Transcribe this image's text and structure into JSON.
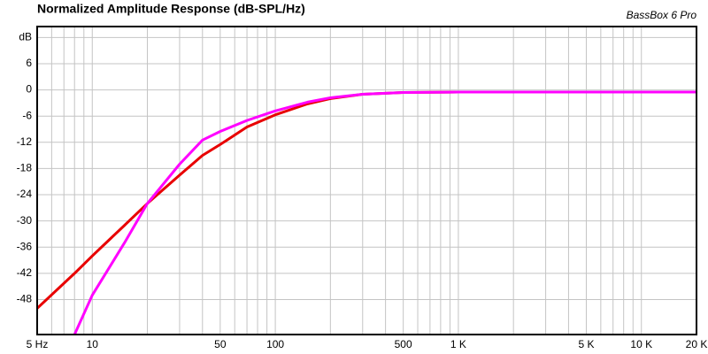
{
  "chart_data": {
    "type": "line",
    "title": "Normalized Amplitude Response (dB-SPL/Hz)",
    "annotation": "BassBox 6 Pro",
    "x": [
      5,
      8,
      10,
      15,
      20,
      30,
      40,
      50,
      70,
      100,
      150,
      200,
      300,
      500,
      1000,
      20000
    ],
    "series": [
      {
        "color": "#e80000",
        "values": [
          -50,
          -42,
          -38,
          -31,
          -26,
          -19.5,
          -15,
          -12.5,
          -8.5,
          -5.7,
          -3.2,
          -2,
          -1,
          -0.6,
          -0.5,
          -0.5
        ]
      },
      {
        "color": "#ff00ff",
        "values": [
          null,
          -56,
          -47,
          -35,
          -26,
          -17,
          -11.5,
          -9.5,
          -7,
          -4.8,
          -2.8,
          -1.8,
          -1,
          -0.6,
          -0.5,
          -0.5
        ]
      }
    ],
    "xscale": "log",
    "xlim": [
      5,
      20000
    ],
    "xticks": [
      {
        "value": 5,
        "label": "5 Hz"
      },
      10,
      50,
      100,
      500,
      {
        "value": 1000,
        "label": "1 K"
      },
      {
        "value": 5000,
        "label": "5 K"
      },
      {
        "value": 10000,
        "label": "10 K"
      },
      {
        "value": 20000,
        "label": "20 K"
      }
    ],
    "x_minor_grid": [
      6,
      7,
      8,
      9,
      20,
      30,
      40,
      60,
      70,
      80,
      90,
      200,
      300,
      400,
      600,
      700,
      800,
      900,
      2000,
      3000,
      4000,
      6000,
      7000,
      8000,
      9000
    ],
    "ylim": [
      -56,
      14.5
    ],
    "yticks": [
      {
        "value": 12,
        "label": "dB"
      },
      6,
      0,
      -6,
      -12,
      -18,
      -24,
      -30,
      -36,
      -42,
      -48
    ],
    "grid": true
  }
}
